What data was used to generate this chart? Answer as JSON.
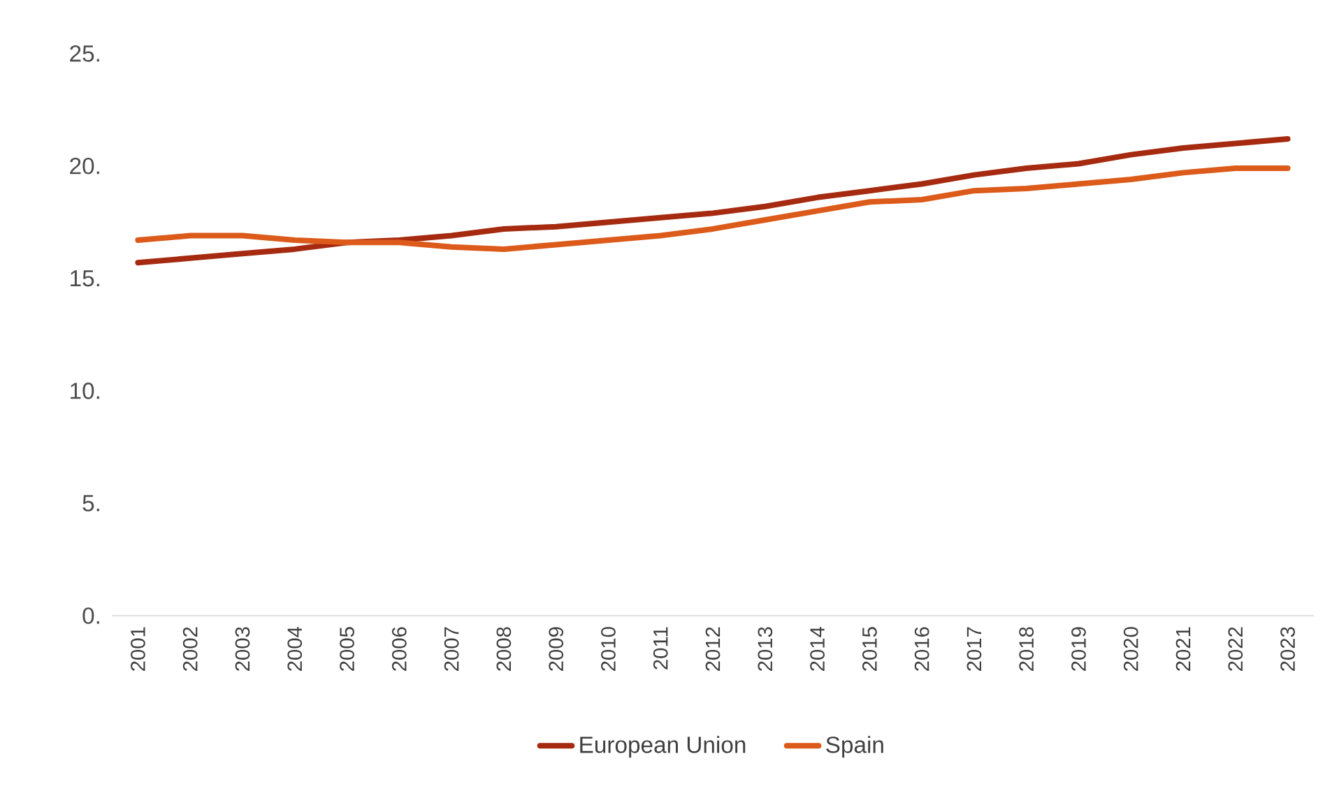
{
  "chart_data": {
    "type": "line",
    "categories": [
      "2001",
      "2002",
      "2003",
      "2004",
      "2005",
      "2006",
      "2007",
      "2008",
      "2009",
      "2010",
      "2011",
      "2012",
      "2013",
      "2014",
      "2015",
      "2016",
      "2017",
      "2018",
      "2019",
      "2020",
      "2021",
      "2022",
      "2023"
    ],
    "series": [
      {
        "name": "European Union",
        "color": "#a52a0f",
        "values": [
          15.7,
          15.9,
          16.1,
          16.3,
          16.6,
          16.7,
          16.9,
          17.2,
          17.3,
          17.5,
          17.7,
          17.9,
          18.2,
          18.6,
          18.9,
          19.2,
          19.6,
          19.9,
          20.1,
          20.5,
          20.8,
          21.0,
          21.2
        ]
      },
      {
        "name": "Spain",
        "color": "#dc5a1a",
        "values": [
          16.7,
          16.9,
          16.9,
          16.7,
          16.6,
          16.6,
          16.4,
          16.3,
          16.5,
          16.7,
          16.9,
          17.2,
          17.6,
          18.0,
          18.4,
          18.5,
          18.9,
          19.0,
          19.2,
          19.4,
          19.7,
          19.9,
          19.9
        ]
      }
    ],
    "ylim": [
      0,
      25
    ],
    "yticks": [
      {
        "value": 0,
        "label": "0."
      },
      {
        "value": 5,
        "label": "5."
      },
      {
        "value": 10,
        "label": "10."
      },
      {
        "value": 15,
        "label": "15."
      },
      {
        "value": 20,
        "label": "20."
      },
      {
        "value": 25,
        "label": "25."
      }
    ],
    "legend": "bottom",
    "grid": false,
    "marker": "none",
    "line_style": "solid"
  }
}
